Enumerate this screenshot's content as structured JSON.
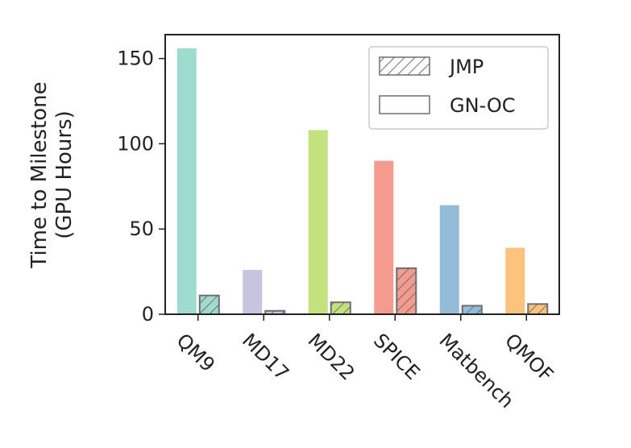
{
  "chart_data": {
    "type": "bar",
    "title": "",
    "xlabel": "",
    "ylabel_lines": [
      "Time to Milestone",
      "(GPU Hours)"
    ],
    "categories": [
      "QM9",
      "MD17",
      "MD22",
      "SPICE",
      "Matbench",
      "QMOF"
    ],
    "category_colors": [
      "#9fdcd0",
      "#c7c4df",
      "#c3e27e",
      "#f59a8e",
      "#94bcd9",
      "#fcc27e"
    ],
    "series": [
      {
        "name": "GN-OC",
        "pattern": "none",
        "values": [
          156,
          26,
          108,
          90,
          64,
          39
        ]
      },
      {
        "name": "JMP",
        "pattern": "hatch",
        "values": [
          11,
          2,
          7,
          27,
          5,
          6
        ]
      }
    ],
    "legend": {
      "position": "top-right",
      "entries": [
        "JMP",
        "GN-OC"
      ]
    },
    "ylim": [
      0,
      164
    ],
    "yticks": [
      0,
      50,
      100,
      150
    ],
    "grid": false
  }
}
